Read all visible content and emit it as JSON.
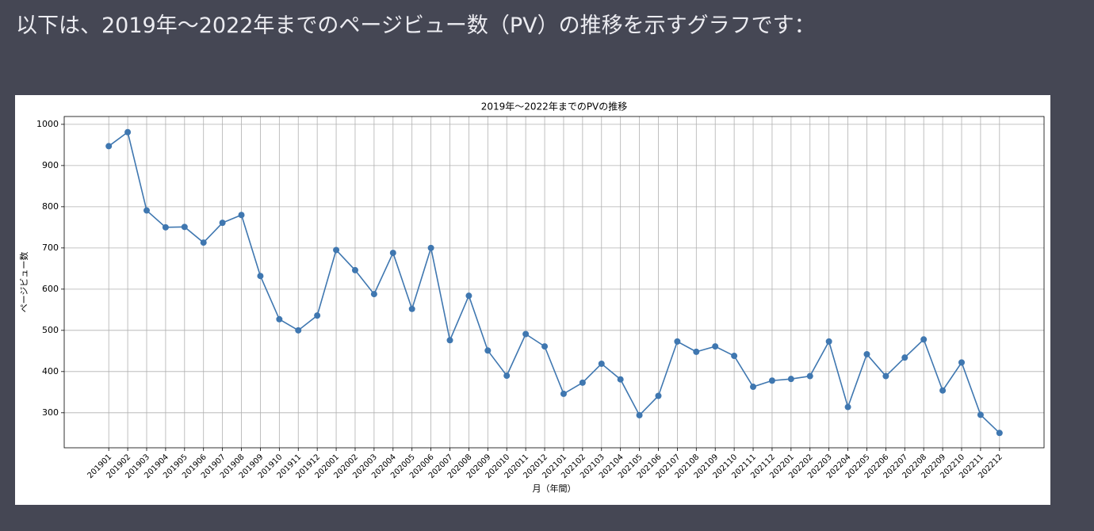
{
  "message": "以下は、2019年〜2022年までのページビュー数（PV）の推移を示すグラフです：",
  "chart_data": {
    "type": "line",
    "title": "2019年〜2022年までのPVの推移",
    "x_label": "月（年間）",
    "y_label": "ページビュー数",
    "categories": [
      "201901",
      "201902",
      "201903",
      "201904",
      "201905",
      "201906",
      "201907",
      "201908",
      "201909",
      "201910",
      "201911",
      "201912",
      "202001",
      "202002",
      "202003",
      "202004",
      "202005",
      "202006",
      "202007",
      "202008",
      "202009",
      "202010",
      "202011",
      "202012",
      "202101",
      "202102",
      "202103",
      "202104",
      "202105",
      "202106",
      "202107",
      "202108",
      "202109",
      "202110",
      "202111",
      "202112",
      "202201",
      "202202",
      "202203",
      "202204",
      "202205",
      "202206",
      "202207",
      "202208",
      "202209",
      "202210",
      "202211",
      "202212"
    ],
    "series": [
      {
        "color": "#3f77b0",
        "values": [
          947,
          981,
          791,
          750,
          751,
          713,
          761,
          780,
          632,
          527,
          500,
          536,
          695,
          646,
          588,
          688,
          552,
          700,
          476,
          584,
          451,
          390,
          491,
          461,
          346,
          373,
          419,
          381,
          294,
          341,
          473,
          448,
          461,
          438,
          363,
          378,
          382,
          389,
          473,
          314,
          442,
          389,
          434,
          478,
          354,
          422,
          295,
          251
        ]
      }
    ],
    "ylim": [
      215,
      1019
    ],
    "yticks": [
      300,
      400,
      500,
      600,
      700,
      800,
      900,
      1000
    ],
    "grid": true
  }
}
